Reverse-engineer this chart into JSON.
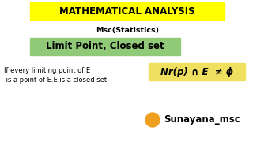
{
  "bg_color": "#ffffff",
  "title_text": "MATHEMATICAL ANALYSIS",
  "title_bg": "#ffff00",
  "subtitle_text": "Msc(Statistics)",
  "banner_text": "Limit Point, Closed set",
  "banner_bg": "#90c978",
  "left_line1": "If every limiting point of E",
  "left_line2": " is a point of E.E is a closed set",
  "formula_text": "Nr(p) ∩ E  ≠ ϕ",
  "formula_bg": "#f0e060",
  "circle_color": "#f0a020",
  "watermark": "Sunayana_msc"
}
